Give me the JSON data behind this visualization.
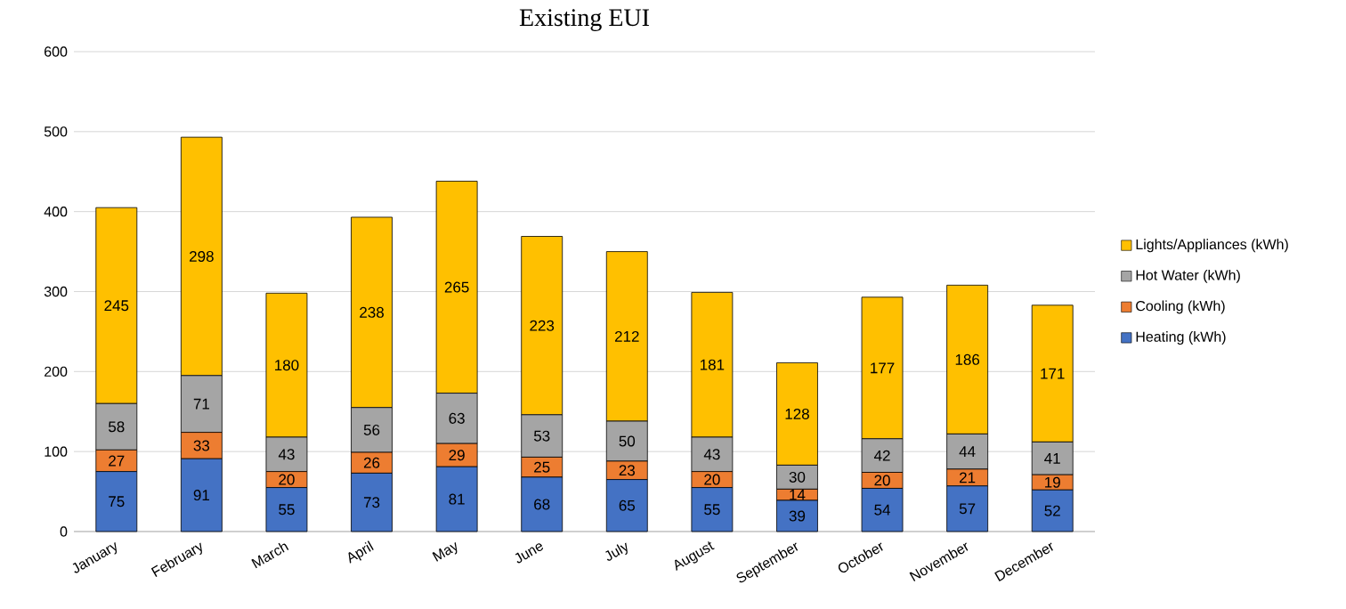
{
  "chart_data": {
    "type": "bar",
    "title": "Existing EUI",
    "stacked": true,
    "data_labels": true,
    "grid": "y",
    "legend": "right",
    "categories": [
      "January",
      "February",
      "March",
      "April",
      "May",
      "June",
      "July",
      "August",
      "September",
      "October",
      "November",
      "December"
    ],
    "ylim": [
      0,
      600
    ],
    "yticks": [
      0,
      100,
      200,
      300,
      400,
      500,
      600
    ],
    "series": [
      {
        "name": "Heating (kWh)",
        "color": "#4472c4",
        "values": [
          75,
          91,
          55,
          73,
          81,
          68,
          65,
          55,
          39,
          54,
          57,
          52
        ]
      },
      {
        "name": "Cooling (kWh)",
        "color": "#ed7d31",
        "values": [
          27,
          33,
          20,
          26,
          29,
          25,
          23,
          20,
          14,
          20,
          21,
          19
        ]
      },
      {
        "name": "Hot Water (kWh)",
        "color": "#a5a5a5",
        "values": [
          58,
          71,
          43,
          56,
          63,
          53,
          50,
          43,
          30,
          42,
          44,
          41
        ]
      },
      {
        "name": "Lights/Appliances (kWh)",
        "color": "#ffc000",
        "values": [
          245,
          298,
          180,
          238,
          265,
          223,
          212,
          181,
          128,
          177,
          186,
          171
        ]
      }
    ]
  }
}
